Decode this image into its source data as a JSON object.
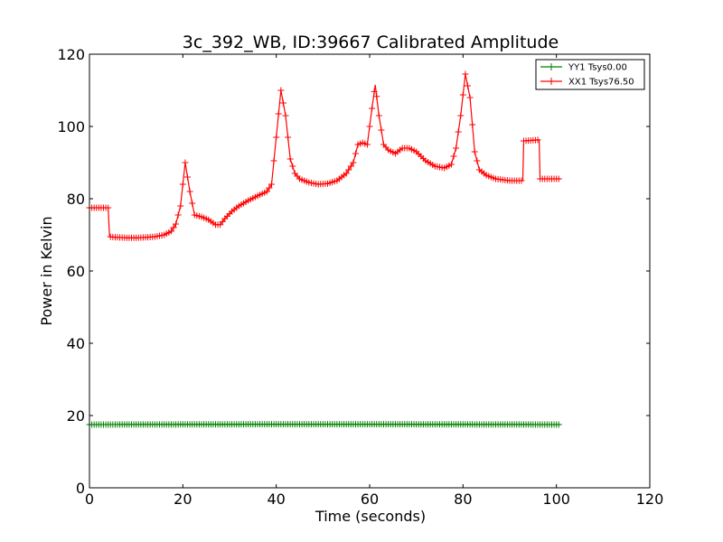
{
  "chart_data": {
    "type": "line",
    "title": "3c_392_WB, ID:39667 Calibrated Amplitude",
    "xlabel": "Time (seconds)",
    "ylabel": "Power in Kelvin",
    "xlim": [
      0,
      120
    ],
    "ylim": [
      0,
      120
    ],
    "xticks": [
      0,
      20,
      40,
      60,
      80,
      100,
      120
    ],
    "yticks": [
      0,
      20,
      40,
      60,
      80,
      100,
      120
    ],
    "grid": false,
    "legend_position": "top-right",
    "marker": "+",
    "series": [
      {
        "name": "YY1 Tsys0.00",
        "color": "#008000",
        "points": [
          [
            0,
            17.5
          ],
          [
            41,
            17.6
          ],
          [
            61,
            17.6
          ],
          [
            100.9,
            17.5
          ]
        ]
      },
      {
        "name": "XX1 Tsys76.50",
        "color": "#ff0000",
        "points": [
          [
            0,
            77.5
          ],
          [
            4,
            77.5
          ],
          [
            4.3,
            69.5
          ],
          [
            6,
            69.3
          ],
          [
            8,
            69.2
          ],
          [
            10,
            69.2
          ],
          [
            12,
            69.3
          ],
          [
            14,
            69.5
          ],
          [
            16,
            70
          ],
          [
            17.5,
            71
          ],
          [
            18.5,
            73
          ],
          [
            19.5,
            78
          ],
          [
            20.5,
            90
          ],
          [
            21.5,
            82
          ],
          [
            22.5,
            75.5
          ],
          [
            24,
            75
          ],
          [
            25.5,
            74.2
          ],
          [
            27,
            72.8
          ],
          [
            28,
            72.8
          ],
          [
            29,
            74.5
          ],
          [
            30.5,
            76.5
          ],
          [
            32,
            78
          ],
          [
            34,
            79.5
          ],
          [
            36,
            80.8
          ],
          [
            38,
            82
          ],
          [
            39,
            84
          ],
          [
            40,
            97
          ],
          [
            41,
            110
          ],
          [
            42,
            103
          ],
          [
            43,
            91
          ],
          [
            44,
            87
          ],
          [
            45,
            85.5
          ],
          [
            47,
            84.5
          ],
          [
            49,
            84
          ],
          [
            51,
            84.2
          ],
          [
            53,
            85
          ],
          [
            55,
            87
          ],
          [
            56.5,
            90
          ],
          [
            57.5,
            95
          ],
          [
            58.5,
            95.5
          ],
          [
            59.5,
            95
          ],
          [
            60.5,
            105
          ],
          [
            61.2,
            111.5
          ],
          [
            62,
            103
          ],
          [
            63,
            95
          ],
          [
            64,
            93.5
          ],
          [
            65.5,
            92.5
          ],
          [
            67,
            94
          ],
          [
            68.5,
            94
          ],
          [
            70,
            93
          ],
          [
            72,
            90.5
          ],
          [
            74,
            89
          ],
          [
            76,
            88.5
          ],
          [
            77.5,
            89.5
          ],
          [
            78.5,
            94
          ],
          [
            79.5,
            103
          ],
          [
            80.5,
            114.5
          ],
          [
            81.5,
            108
          ],
          [
            82.5,
            93
          ],
          [
            83.5,
            88
          ],
          [
            85,
            86.5
          ],
          [
            87,
            85.5
          ],
          [
            90,
            85
          ],
          [
            92.8,
            85
          ],
          [
            93,
            96
          ],
          [
            96.3,
            96.3
          ],
          [
            96.5,
            85.5
          ],
          [
            100.9,
            85.5
          ]
        ]
      }
    ]
  }
}
